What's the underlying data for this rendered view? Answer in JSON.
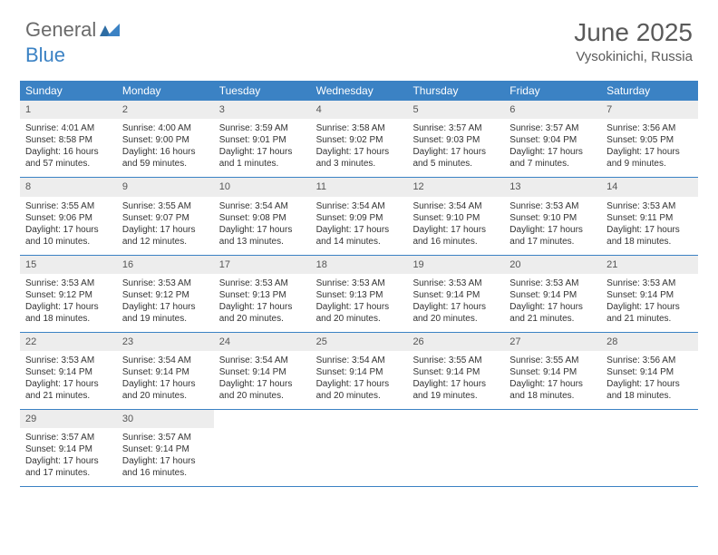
{
  "brand": {
    "part1": "General",
    "part2": "Blue"
  },
  "title": "June 2025",
  "location": "Vysokinichi, Russia",
  "colors": {
    "header_bg": "#3b82c4",
    "header_text": "#ffffff",
    "daynum_bg": "#ededed",
    "text": "#333333",
    "border": "#3b82c4",
    "brand_gray": "#6a6a6a",
    "brand_blue": "#3b82c4"
  },
  "dayNames": [
    "Sunday",
    "Monday",
    "Tuesday",
    "Wednesday",
    "Thursday",
    "Friday",
    "Saturday"
  ],
  "weeks": [
    [
      {
        "n": "1",
        "sr": "4:01 AM",
        "ss": "8:58 PM",
        "dl": "16 hours and 57 minutes."
      },
      {
        "n": "2",
        "sr": "4:00 AM",
        "ss": "9:00 PM",
        "dl": "16 hours and 59 minutes."
      },
      {
        "n": "3",
        "sr": "3:59 AM",
        "ss": "9:01 PM",
        "dl": "17 hours and 1 minutes."
      },
      {
        "n": "4",
        "sr": "3:58 AM",
        "ss": "9:02 PM",
        "dl": "17 hours and 3 minutes."
      },
      {
        "n": "5",
        "sr": "3:57 AM",
        "ss": "9:03 PM",
        "dl": "17 hours and 5 minutes."
      },
      {
        "n": "6",
        "sr": "3:57 AM",
        "ss": "9:04 PM",
        "dl": "17 hours and 7 minutes."
      },
      {
        "n": "7",
        "sr": "3:56 AM",
        "ss": "9:05 PM",
        "dl": "17 hours and 9 minutes."
      }
    ],
    [
      {
        "n": "8",
        "sr": "3:55 AM",
        "ss": "9:06 PM",
        "dl": "17 hours and 10 minutes."
      },
      {
        "n": "9",
        "sr": "3:55 AM",
        "ss": "9:07 PM",
        "dl": "17 hours and 12 minutes."
      },
      {
        "n": "10",
        "sr": "3:54 AM",
        "ss": "9:08 PM",
        "dl": "17 hours and 13 minutes."
      },
      {
        "n": "11",
        "sr": "3:54 AM",
        "ss": "9:09 PM",
        "dl": "17 hours and 14 minutes."
      },
      {
        "n": "12",
        "sr": "3:54 AM",
        "ss": "9:10 PM",
        "dl": "17 hours and 16 minutes."
      },
      {
        "n": "13",
        "sr": "3:53 AM",
        "ss": "9:10 PM",
        "dl": "17 hours and 17 minutes."
      },
      {
        "n": "14",
        "sr": "3:53 AM",
        "ss": "9:11 PM",
        "dl": "17 hours and 18 minutes."
      }
    ],
    [
      {
        "n": "15",
        "sr": "3:53 AM",
        "ss": "9:12 PM",
        "dl": "17 hours and 18 minutes."
      },
      {
        "n": "16",
        "sr": "3:53 AM",
        "ss": "9:12 PM",
        "dl": "17 hours and 19 minutes."
      },
      {
        "n": "17",
        "sr": "3:53 AM",
        "ss": "9:13 PM",
        "dl": "17 hours and 20 minutes."
      },
      {
        "n": "18",
        "sr": "3:53 AM",
        "ss": "9:13 PM",
        "dl": "17 hours and 20 minutes."
      },
      {
        "n": "19",
        "sr": "3:53 AM",
        "ss": "9:14 PM",
        "dl": "17 hours and 20 minutes."
      },
      {
        "n": "20",
        "sr": "3:53 AM",
        "ss": "9:14 PM",
        "dl": "17 hours and 21 minutes."
      },
      {
        "n": "21",
        "sr": "3:53 AM",
        "ss": "9:14 PM",
        "dl": "17 hours and 21 minutes."
      }
    ],
    [
      {
        "n": "22",
        "sr": "3:53 AM",
        "ss": "9:14 PM",
        "dl": "17 hours and 21 minutes."
      },
      {
        "n": "23",
        "sr": "3:54 AM",
        "ss": "9:14 PM",
        "dl": "17 hours and 20 minutes."
      },
      {
        "n": "24",
        "sr": "3:54 AM",
        "ss": "9:14 PM",
        "dl": "17 hours and 20 minutes."
      },
      {
        "n": "25",
        "sr": "3:54 AM",
        "ss": "9:14 PM",
        "dl": "17 hours and 20 minutes."
      },
      {
        "n": "26",
        "sr": "3:55 AM",
        "ss": "9:14 PM",
        "dl": "17 hours and 19 minutes."
      },
      {
        "n": "27",
        "sr": "3:55 AM",
        "ss": "9:14 PM",
        "dl": "17 hours and 18 minutes."
      },
      {
        "n": "28",
        "sr": "3:56 AM",
        "ss": "9:14 PM",
        "dl": "17 hours and 18 minutes."
      }
    ],
    [
      {
        "n": "29",
        "sr": "3:57 AM",
        "ss": "9:14 PM",
        "dl": "17 hours and 17 minutes."
      },
      {
        "n": "30",
        "sr": "3:57 AM",
        "ss": "9:14 PM",
        "dl": "17 hours and 16 minutes."
      },
      null,
      null,
      null,
      null,
      null
    ]
  ],
  "labels": {
    "sunrise": "Sunrise:",
    "sunset": "Sunset:",
    "daylight": "Daylight:"
  }
}
